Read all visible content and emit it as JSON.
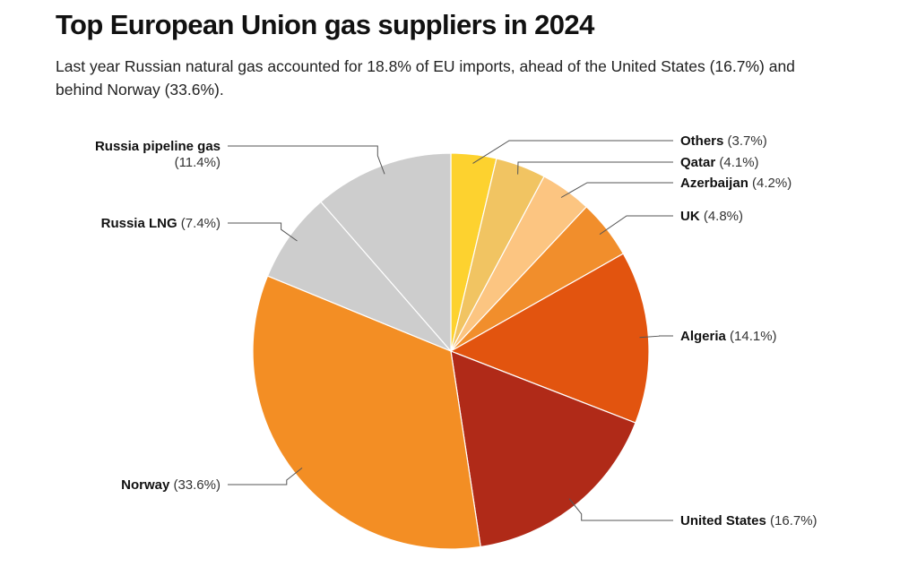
{
  "title": "Top European Union gas suppliers in 2024",
  "subtitle": "Last year Russian natural gas accounted for 18.8% of EU imports, ahead of the United States (16.7%) and behind Norway (33.6%).",
  "chart_data": {
    "type": "pie",
    "title": "Top European Union gas suppliers in 2024",
    "slices": [
      {
        "label": "Others",
        "value": 3.7,
        "display": "(3.7%)",
        "color": "#FDD22F"
      },
      {
        "label": "Qatar",
        "value": 4.1,
        "display": "(4.1%)",
        "color": "#F1C462"
      },
      {
        "label": "Azerbaijan",
        "value": 4.2,
        "display": "(4.2%)",
        "color": "#FCC581"
      },
      {
        "label": "UK",
        "value": 4.8,
        "display": "(4.8%)",
        "color": "#F18E2C"
      },
      {
        "label": "Algeria",
        "value": 14.1,
        "display": "(14.1%)",
        "color": "#E2540F"
      },
      {
        "label": "United States",
        "value": 16.7,
        "display": "(16.7%)",
        "color": "#B02A18"
      },
      {
        "label": "Norway",
        "value": 33.6,
        "display": "(33.6%)",
        "color": "#F38E24"
      },
      {
        "label": "Russia LNG",
        "value": 7.4,
        "display": "(7.4%)",
        "color": "#CDCDCD"
      },
      {
        "label": "Russia pipeline gas",
        "value": 11.4,
        "display": "(11.4%)",
        "color": "#CDCDCD"
      }
    ],
    "start": "12 o'clock",
    "direction": "clockwise",
    "legend": "none (direct labels)"
  }
}
